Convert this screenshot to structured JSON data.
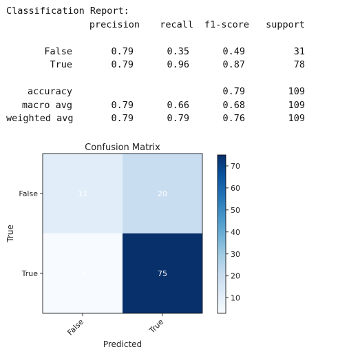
{
  "report": {
    "title": "Classification Report:",
    "columns": [
      "precision",
      "recall",
      "f1-score",
      "support"
    ],
    "rows": [
      {
        "label": "False",
        "precision": "0.79",
        "recall": "0.35",
        "f1": "0.49",
        "support": "31"
      },
      {
        "label": "True",
        "precision": "0.79",
        "recall": "0.96",
        "f1": "0.87",
        "support": "78"
      }
    ],
    "summary": [
      {
        "label": "accuracy",
        "precision": "",
        "recall": "",
        "f1": "0.79",
        "support": "109"
      },
      {
        "label": "macro avg",
        "precision": "0.79",
        "recall": "0.66",
        "f1": "0.68",
        "support": "109"
      },
      {
        "label": "weighted avg",
        "precision": "0.79",
        "recall": "0.79",
        "f1": "0.76",
        "support": "109"
      }
    ]
  },
  "chart_data": {
    "type": "heatmap",
    "title": "Confusion Matrix",
    "xlabel": "Predicted",
    "ylabel": "True",
    "x_categories": [
      "False",
      "True"
    ],
    "y_categories": [
      "False",
      "True"
    ],
    "values": [
      [
        11,
        20
      ],
      [
        3,
        75
      ]
    ],
    "colormap": "Blues",
    "colorbar_range": [
      3,
      75
    ],
    "colorbar_ticks": [
      10,
      20,
      30,
      40,
      50,
      60,
      70
    ],
    "cell_text_color": "#ffffff"
  }
}
